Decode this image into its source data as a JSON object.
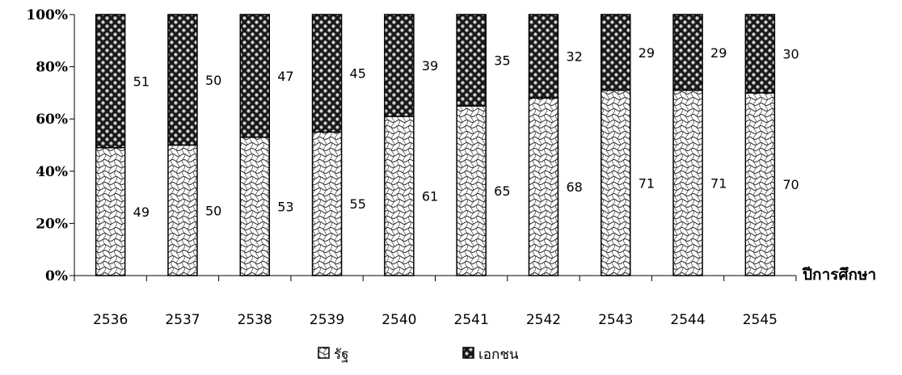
{
  "chart_data": {
    "type": "bar",
    "stacked": true,
    "percent": true,
    "categories": [
      "2536",
      "2537",
      "2538",
      "2539",
      "2540",
      "2541",
      "2542",
      "2543",
      "2544",
      "2545"
    ],
    "series": [
      {
        "name": "รัฐ",
        "values": [
          49,
          50,
          53,
          55,
          61,
          65,
          68,
          71,
          71,
          70
        ]
      },
      {
        "name": "เอกชน",
        "values": [
          51,
          50,
          47,
          45,
          39,
          35,
          32,
          29,
          29,
          30
        ]
      }
    ],
    "xlabel": "ปีการศึกษา",
    "ylabel": "",
    "y_ticks": [
      "0%",
      "20%",
      "40%",
      "60%",
      "80%",
      "100%"
    ],
    "ylim": [
      0,
      100
    ],
    "grid": false,
    "legend": "bottom",
    "colors": {
      "stroke": "#000000",
      "background": "#ffffff"
    }
  }
}
